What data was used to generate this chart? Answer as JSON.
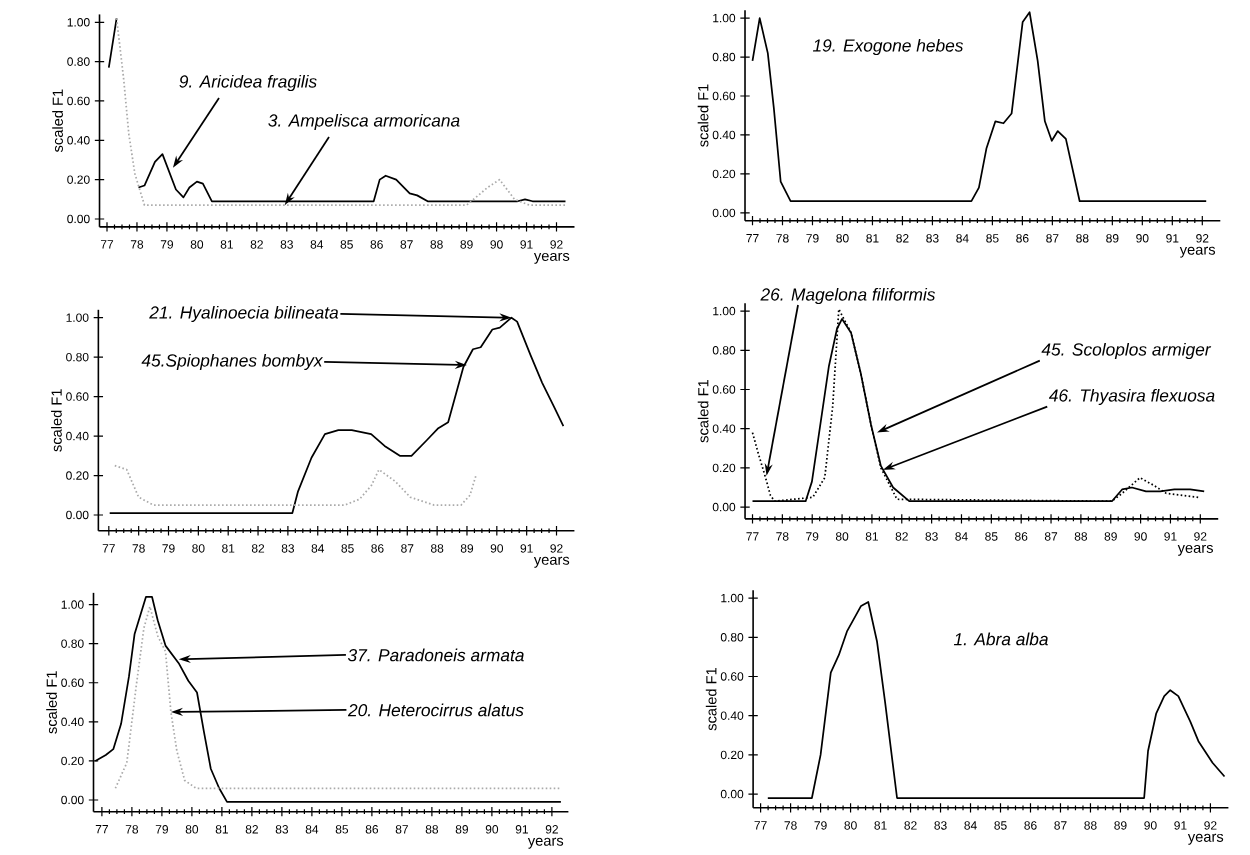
{
  "chart_data": [
    {
      "type": "line",
      "xlabel": "years",
      "ylabel": "scaled F1",
      "xlim": [
        76.75,
        92.6
      ],
      "ylim": [
        -0.04,
        1.04
      ],
      "xticks": [
        77,
        78,
        79,
        80,
        81,
        82,
        83,
        84,
        85,
        86,
        87,
        88,
        89,
        90,
        91,
        92
      ],
      "yticks": [
        {
          "value": 0,
          "label": "0.00"
        },
        {
          "value": 0.2,
          "label": "0.20"
        },
        {
          "value": 0.4,
          "label": "0.40"
        },
        {
          "value": 0.6,
          "label": "0.60"
        },
        {
          "value": 0.8,
          "label": "0.80"
        },
        {
          "value": 1,
          "label": "1.00"
        }
      ],
      "series": [
        {
          "color": "#000000",
          "line_style": "solid",
          "x": [
            77.06,
            77.32,
            77.6,
            78.05,
            78.25,
            78.6,
            78.85,
            79.3,
            79.55,
            79.75,
            80.0,
            80.2,
            80.5,
            85.9,
            86.1,
            86.3,
            86.65,
            87.1,
            87.35,
            87.7,
            89.0,
            90.7,
            90.95,
            91.2,
            92.3
          ],
          "values": [
            0.77,
            1.02,
            null,
            0.16,
            0.17,
            0.29,
            0.33,
            0.15,
            0.11,
            0.16,
            0.19,
            0.18,
            0.09,
            0.09,
            0.2,
            0.22,
            0.2,
            0.13,
            0.12,
            0.09,
            0.09,
            0.09,
            0.1,
            0.09,
            0.09
          ]
        },
        {
          "color": "#aaaaaa",
          "line_style": "dotted",
          "x": [
            77.32,
            77.55,
            77.73,
            77.93,
            78.15,
            78.25,
            89.0,
            89.7,
            90.1,
            90.6,
            91.1,
            92.3
          ],
          "values": [
            1.02,
            0.72,
            0.43,
            0.23,
            0.12,
            0.07,
            0.07,
            0.16,
            0.2,
            0.1,
            0.07,
            0.07
          ]
        }
      ],
      "annotations": [
        {
          "text": "9. Aricidea fragilis",
          "x": 79.2,
          "y": 0.26
        },
        {
          "text": "3. Ampelisca armoricana",
          "x": 82.93,
          "y": 0.07
        }
      ]
    },
    {
      "type": "line",
      "xlabel": "years",
      "ylabel": "scaled F1",
      "xlim": [
        76.75,
        92.6
      ],
      "ylim": [
        -0.04,
        1.04
      ],
      "xticks": [
        77,
        78,
        79,
        80,
        81,
        82,
        83,
        84,
        85,
        86,
        87,
        88,
        89,
        90,
        91,
        92
      ],
      "yticks": [
        {
          "value": 0,
          "label": "0.00"
        },
        {
          "value": 0.2,
          "label": "0.20"
        },
        {
          "value": 0.4,
          "label": "0.40"
        },
        {
          "value": 0.6,
          "label": "0.60"
        },
        {
          "value": 0.8,
          "label": "0.80"
        },
        {
          "value": 1,
          "label": "1.00"
        }
      ],
      "series": [
        {
          "color": "#000000",
          "line_style": "solid",
          "x": [
            77.0,
            77.24,
            77.51,
            77.71,
            77.94,
            78.27,
            84.3,
            84.55,
            84.8,
            85.1,
            85.37,
            85.64,
            86.01,
            86.24,
            86.51,
            86.75,
            86.98,
            87.18,
            87.45,
            87.91,
            92.13
          ],
          "values": [
            0.78,
            1.0,
            0.82,
            0.54,
            0.16,
            0.06,
            0.06,
            0.13,
            0.33,
            0.47,
            0.46,
            0.51,
            0.98,
            1.03,
            0.78,
            0.47,
            0.37,
            0.42,
            0.38,
            0.06,
            0.06
          ]
        }
      ],
      "annotations": [
        "19. Exogone hebes"
      ]
    },
    {
      "type": "line",
      "xlabel": "years",
      "ylabel": "scaled F1",
      "xlim": [
        76.65,
        92.6
      ],
      "ylim": [
        -0.08,
        1.04
      ],
      "xticks": [
        77,
        78,
        79,
        80,
        81,
        82,
        83,
        84,
        85,
        86,
        87,
        88,
        89,
        90,
        91,
        92
      ],
      "yticks": [
        {
          "value": 0,
          "label": "0.00"
        },
        {
          "value": 0.2,
          "label": "0.20"
        },
        {
          "value": 0.4,
          "label": "0.40"
        },
        {
          "value": 0.6,
          "label": "0.60"
        },
        {
          "value": 0.8,
          "label": "0.80"
        },
        {
          "value": 1,
          "label": "1.00"
        }
      ],
      "series": [
        {
          "color": "#000000",
          "line_style": "solid",
          "x": [
            77.03,
            83.15,
            83.34,
            83.79,
            84.24,
            84.69,
            85.14,
            85.79,
            86.24,
            86.75,
            87.14,
            87.66,
            88.04,
            88.37,
            88.88,
            89.2,
            89.46,
            89.85,
            90.1,
            90.49,
            90.68,
            91.13,
            91.52,
            91.91,
            92.23
          ],
          "values": [
            0.01,
            0.01,
            0.12,
            0.29,
            0.41,
            0.43,
            0.43,
            0.41,
            0.35,
            0.3,
            0.3,
            0.38,
            0.44,
            0.47,
            0.75,
            0.84,
            0.85,
            0.94,
            0.95,
            1.0,
            0.98,
            0.81,
            0.67,
            0.55,
            0.45
          ]
        },
        {
          "color": "#aaaaaa",
          "line_style": "dotted",
          "x": [
            77.2,
            77.6,
            78.0,
            78.5,
            84.9,
            85.4,
            85.8,
            86.05,
            86.6,
            87.1,
            87.9,
            88.8,
            89.1,
            89.3
          ],
          "values": [
            0.25,
            0.23,
            0.09,
            0.05,
            0.05,
            0.08,
            0.15,
            0.23,
            0.17,
            0.09,
            0.05,
            0.05,
            0.1,
            0.2
          ]
        }
      ],
      "annotations": [
        {
          "text": "21. Hyalinoecia bilineata",
          "x": 90.49,
          "y": 1.0
        },
        {
          "text": "45.Spiophanes bombyx",
          "x": 89.0,
          "y": 0.76
        }
      ]
    },
    {
      "type": "line",
      "xlabel": "years",
      "ylabel": "scaled F1",
      "xlim": [
        76.75,
        92.6
      ],
      "ylim": [
        -0.06,
        1.04
      ],
      "xticks": [
        77,
        78,
        79,
        80,
        81,
        82,
        83,
        84,
        85,
        86,
        87,
        88,
        89,
        90,
        91,
        92
      ],
      "yticks": [
        {
          "value": 0,
          "label": "0.00"
        },
        {
          "value": 0.2,
          "label": "0.20"
        },
        {
          "value": 0.4,
          "label": "0.40"
        },
        {
          "value": 0.6,
          "label": "0.60"
        },
        {
          "value": 0.8,
          "label": "0.80"
        },
        {
          "value": 1,
          "label": "1.00"
        }
      ],
      "series": [
        {
          "color": "#000000",
          "line_style": "solid",
          "x": [
            77.0,
            78.78,
            78.99,
            79.29,
            79.56,
            79.83,
            80.0,
            80.3,
            80.63,
            80.97,
            81.3,
            81.71,
            82.25,
            89.04,
            89.38,
            89.71,
            90.18,
            90.66,
            91.13,
            91.66,
            92.13
          ],
          "values": [
            0.03,
            0.03,
            0.13,
            0.44,
            0.72,
            0.91,
            0.96,
            0.89,
            0.68,
            0.42,
            0.21,
            0.1,
            0.03,
            0.03,
            0.09,
            0.1,
            0.08,
            0.08,
            0.09,
            0.09,
            0.08
          ]
        },
        {
          "color": "#000000",
          "line_style": "dotted",
          "x": [
            77.0,
            77.2,
            77.4,
            77.6,
            77.74,
            79.02,
            79.42,
            79.69,
            79.89,
            80.3,
            80.63,
            80.97,
            81.3,
            81.84,
            89.04,
            89.38,
            89.98,
            90.45,
            90.86,
            91.93
          ],
          "values": [
            0.38,
            0.27,
            0.17,
            0.06,
            0.03,
            0.05,
            0.15,
            0.52,
            1.01,
            0.89,
            0.68,
            0.42,
            0.2,
            0.04,
            0.03,
            0.07,
            0.15,
            0.11,
            0.07,
            0.05
          ]
        }
      ],
      "annotations": [
        {
          "text": "26. Magelona filiformis",
          "x": 77.47,
          "y": 0.16
        },
        {
          "text": "45. Scoloplos armiger",
          "x": 81.17,
          "y": 0.38
        },
        {
          "text": "46. Thyasira flexuosa",
          "x": 81.37,
          "y": 0.19
        }
      ]
    },
    {
      "type": "line",
      "xlabel": "years",
      "ylabel": "scaled F1",
      "xlim": [
        76.72,
        92.55
      ],
      "ylim": [
        -0.06,
        1.06
      ],
      "xticks": [
        77,
        78,
        79,
        80,
        81,
        82,
        83,
        84,
        85,
        86,
        87,
        88,
        89,
        90,
        91,
        92
      ],
      "yticks": [
        {
          "value": 0,
          "label": "0.00"
        },
        {
          "value": 0.2,
          "label": "0.20"
        },
        {
          "value": 0.4,
          "label": "0.40"
        },
        {
          "value": 0.6,
          "label": "0.60"
        },
        {
          "value": 0.8,
          "label": "0.80"
        },
        {
          "value": 1,
          "label": "1.00"
        }
      ],
      "series": [
        {
          "color": "#000000",
          "line_style": "solid",
          "x": [
            76.78,
            77.13,
            77.38,
            77.64,
            77.9,
            78.09,
            78.47,
            78.67,
            78.86,
            79.12,
            79.56,
            79.88,
            80.17,
            80.4,
            80.63,
            80.91,
            81.17,
            92.3
          ],
          "values": [
            0.2,
            0.23,
            0.26,
            0.39,
            0.63,
            0.85,
            1.04,
            1.04,
            0.92,
            0.79,
            0.7,
            0.61,
            0.55,
            0.35,
            0.16,
            0.06,
            -0.01,
            -0.01
          ]
        },
        {
          "color": "#aaaaaa",
          "line_style": "dotted",
          "x": [
            77.45,
            77.83,
            78.15,
            78.4,
            78.6,
            78.86,
            79.12,
            79.3,
            79.5,
            79.76,
            80.14,
            92.3
          ],
          "values": [
            0.06,
            0.19,
            0.59,
            0.88,
            0.99,
            0.84,
            0.76,
            0.45,
            0.25,
            0.1,
            0.06,
            0.06
          ]
        }
      ],
      "annotations": [
        {
          "text": "37. Paradoneis armata",
          "x": 79.56,
          "y": 0.72
        },
        {
          "text": "20. Heterocirrus alatus",
          "x": 79.3,
          "y": 0.45
        }
      ]
    },
    {
      "type": "line",
      "xlabel": "years",
      "ylabel": "scaled F1",
      "xlim": [
        76.75,
        92.6
      ],
      "ylim": [
        -0.07,
        1.04
      ],
      "xticks": [
        77,
        78,
        79,
        80,
        81,
        82,
        83,
        84,
        85,
        86,
        87,
        88,
        89,
        90,
        91,
        92
      ],
      "yticks": [
        {
          "value": 0,
          "label": "0.00"
        },
        {
          "value": 0.2,
          "label": "0.20"
        },
        {
          "value": 0.4,
          "label": "0.40"
        },
        {
          "value": 0.6,
          "label": "0.60"
        },
        {
          "value": 0.8,
          "label": "0.80"
        },
        {
          "value": 1,
          "label": "1.00"
        }
      ],
      "series": [
        {
          "color": "#000000",
          "line_style": "solid",
          "x": [
            77.24,
            78.71,
            79.0,
            79.34,
            79.61,
            79.88,
            80.35,
            80.59,
            80.88,
            81.15,
            81.55,
            89.79,
            89.92,
            90.19,
            90.46,
            90.66,
            90.93,
            91.33,
            91.6,
            92.07,
            92.47
          ],
          "values": [
            -0.02,
            -0.02,
            0.2,
            0.62,
            0.71,
            0.83,
            0.96,
            0.98,
            0.78,
            0.47,
            -0.02,
            -0.02,
            0.22,
            0.41,
            0.5,
            0.53,
            0.5,
            0.37,
            0.27,
            0.16,
            0.09
          ]
        }
      ],
      "annotations": [
        "1. Abra alba"
      ]
    }
  ]
}
